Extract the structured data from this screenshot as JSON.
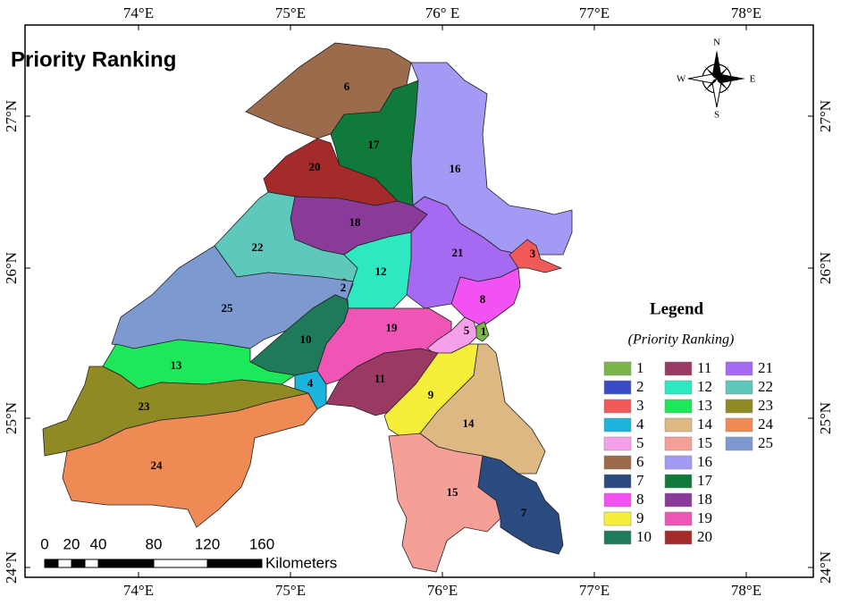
{
  "title": "Priority Ranking",
  "graticule": {
    "top": [
      "74°E",
      "75°E",
      "76° E",
      "77°E",
      "78°E"
    ],
    "bottom": [
      "74°E",
      "75°E",
      "76°E",
      "77°E",
      "78°E"
    ],
    "left": [
      "27°N",
      "26°N",
      "25°N",
      "24°N"
    ],
    "right": [
      "27°N",
      "26°N",
      "25°N",
      "24°N"
    ]
  },
  "compass": {
    "n": "N",
    "e": "E",
    "s": "S",
    "w": "W"
  },
  "scale_bar": {
    "labels": [
      "0",
      "20",
      "40",
      "80",
      "120",
      "160"
    ],
    "unit": "Kilometers"
  },
  "legend": {
    "title": "Legend",
    "subtitle": "(Priority Ranking)",
    "items": [
      {
        "label": "1",
        "color": "#7ab648"
      },
      {
        "label": "2",
        "color": "#3b4bc8"
      },
      {
        "label": "3",
        "color": "#f25a5a"
      },
      {
        "label": "4",
        "color": "#1cb3dd"
      },
      {
        "label": "5",
        "color": "#f7a0ea"
      },
      {
        "label": "6",
        "color": "#9c6b4c"
      },
      {
        "label": "7",
        "color": "#2b4a80"
      },
      {
        "label": "8",
        "color": "#f252f2"
      },
      {
        "label": "9",
        "color": "#f7ee3c"
      },
      {
        "label": "10",
        "color": "#1f7a5c"
      },
      {
        "label": "11",
        "color": "#9a3a62"
      },
      {
        "label": "12",
        "color": "#2de8c0"
      },
      {
        "label": "13",
        "color": "#1de85a"
      },
      {
        "label": "14",
        "color": "#ddb882"
      },
      {
        "label": "15",
        "color": "#f5a097"
      },
      {
        "label": "16",
        "color": "#a39af5"
      },
      {
        "label": "17",
        "color": "#0f7a3a"
      },
      {
        "label": "18",
        "color": "#8a3a98"
      },
      {
        "label": "19",
        "color": "#ee55b5"
      },
      {
        "label": "20",
        "color": "#a52a2a"
      },
      {
        "label": "21",
        "color": "#a66af2"
      },
      {
        "label": "22",
        "color": "#5ec8bd"
      },
      {
        "label": "23",
        "color": "#8f8a24"
      },
      {
        "label": "24",
        "color": "#f08a55"
      },
      {
        "label": "25",
        "color": "#7d9ad0"
      }
    ]
  }
}
